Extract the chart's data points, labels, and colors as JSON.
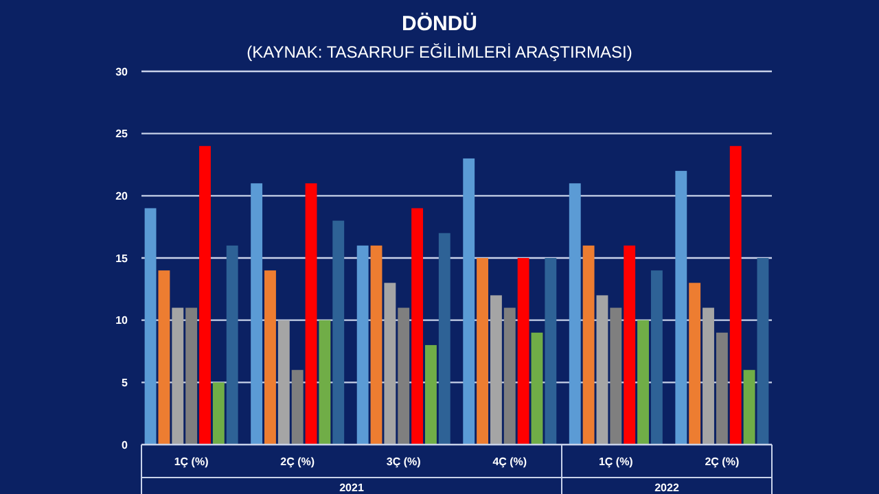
{
  "chart_data": {
    "type": "bar",
    "title": "DÖNDÜ",
    "subtitle": "(KAYNAK: TASARRUF EĞİLİMLERİ ARAŞTIRMASI)",
    "categories": [
      "1Ç (%)",
      "2Ç (%)",
      "3Ç (%)",
      "4Ç (%)",
      "1Ç (%)",
      "2Ç (%)"
    ],
    "series": [
      {
        "color": "#5b9bd5",
        "values": [
          19,
          21,
          16,
          23,
          21,
          22
        ]
      },
      {
        "color": "#ed7d31",
        "values": [
          14,
          14,
          16,
          15,
          16,
          13
        ]
      },
      {
        "color": "#a5a5a5",
        "values": [
          11,
          10,
          13,
          12,
          12,
          11
        ]
      },
      {
        "color": "#7f7f7f",
        "values": [
          11,
          6,
          11,
          11,
          11,
          9
        ]
      },
      {
        "color": "#ff0000",
        "values": [
          24,
          21,
          19,
          15,
          16,
          24
        ]
      },
      {
        "color": "#70ad47",
        "values": [
          5,
          10,
          8,
          9,
          10,
          6
        ]
      },
      {
        "color": "#2e6296",
        "values": [
          16,
          18,
          17,
          15,
          14,
          15
        ]
      }
    ],
    "ylim": [
      0,
      30
    ],
    "yticks": [
      0,
      5,
      10,
      15,
      20,
      25,
      30
    ],
    "grid": "y",
    "annotations": [
      "2021",
      "2022"
    ]
  }
}
